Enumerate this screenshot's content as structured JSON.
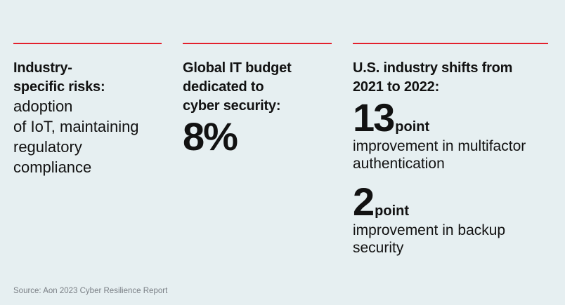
{
  "columns": [
    {
      "heading": "Industry-specific risks:",
      "heading_line1": "Industry-",
      "heading_line2": "specific risks:",
      "body_lines": [
        "adoption",
        "of IoT, maintaining",
        "regulatory",
        "compliance"
      ]
    },
    {
      "heading_lines": [
        "Global IT budget",
        "dedicated to",
        "cyber security:"
      ],
      "value": "8%"
    },
    {
      "heading_lines": [
        "U.S. industry shifts from",
        "2021 to 2022:"
      ],
      "stats": [
        {
          "value": "13",
          "unit": "point",
          "desc_lines": [
            "improvement in multifactor",
            "authentication"
          ]
        },
        {
          "value": "2",
          "unit": "point",
          "desc_lines": [
            "improvement in backup",
            "security"
          ]
        }
      ]
    }
  ],
  "source": "Source: Aon 2023 Cyber Resilience Report",
  "colors": {
    "background": "#e6eff1",
    "accent_rule": "#e3212d",
    "text": "#121212",
    "source_text": "#7a7f85"
  }
}
